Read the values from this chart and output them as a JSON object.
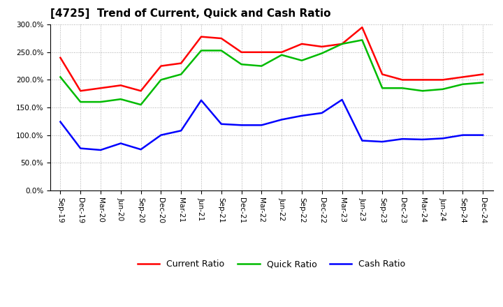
{
  "title": "[4725]  Trend of Current, Quick and Cash Ratio",
  "labels": [
    "Sep-19",
    "Dec-19",
    "Mar-20",
    "Jun-20",
    "Sep-20",
    "Dec-20",
    "Mar-21",
    "Jun-21",
    "Sep-21",
    "Dec-21",
    "Mar-22",
    "Jun-22",
    "Sep-22",
    "Dec-22",
    "Mar-23",
    "Jun-23",
    "Sep-23",
    "Dec-23",
    "Mar-24",
    "Jun-24",
    "Sep-24",
    "Dec-24"
  ],
  "current_ratio": [
    240,
    180,
    185,
    190,
    180,
    225,
    230,
    278,
    275,
    250,
    250,
    250,
    265,
    260,
    265,
    295,
    210,
    200,
    200,
    200,
    205,
    210
  ],
  "quick_ratio": [
    205,
    160,
    160,
    165,
    155,
    200,
    210,
    253,
    253,
    228,
    225,
    245,
    235,
    248,
    265,
    272,
    185,
    185,
    180,
    183,
    192,
    195
  ],
  "cash_ratio": [
    124,
    76,
    73,
    85,
    74,
    100,
    108,
    163,
    120,
    118,
    118,
    128,
    135,
    140,
    164,
    90,
    88,
    93,
    92,
    94,
    100,
    100
  ],
  "ylim": [
    0,
    300
  ],
  "yticks": [
    0,
    50,
    100,
    150,
    200,
    250,
    300
  ],
  "current_color": "#ff0000",
  "quick_color": "#00bb00",
  "cash_color": "#0000ff",
  "bg_color": "#ffffff",
  "grid_color": "#aaaaaa",
  "legend_labels": [
    "Current Ratio",
    "Quick Ratio",
    "Cash Ratio"
  ],
  "title_fontsize": 11,
  "tick_fontsize": 7.5,
  "legend_fontsize": 9,
  "linewidth": 1.8
}
